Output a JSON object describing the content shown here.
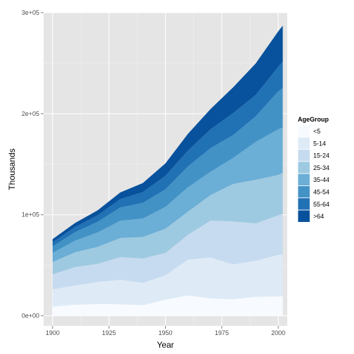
{
  "chart_data": {
    "type": "area",
    "stacked": true,
    "xlabel": "Year",
    "ylabel": "Thousands",
    "xlim": [
      1896,
      2004
    ],
    "ylim": [
      -10000,
      300000
    ],
    "x_ticks": [
      1900,
      1925,
      1950,
      1975,
      2000
    ],
    "y_ticks": [
      0,
      100000,
      200000,
      300000
    ],
    "y_tick_labels": [
      "0e+00",
      "1e+05",
      "2e+05",
      "3e+05"
    ],
    "grid": true,
    "legend": {
      "title": "AgeGroup",
      "position": "right"
    },
    "x": [
      1900,
      1910,
      1920,
      1930,
      1940,
      1950,
      1960,
      1970,
      1980,
      1990,
      2000,
      2002
    ],
    "series": [
      {
        "name": "<5",
        "color": "#f7fbff",
        "values": [
          9200,
          11000,
          11600,
          11500,
          10500,
          16000,
          20200,
          17200,
          16300,
          18800,
          19200,
          19400
        ]
      },
      {
        "name": "5-14",
        "color": "#deebf7",
        "values": [
          17000,
          19000,
          21800,
          24200,
          22000,
          24100,
          35500,
          40500,
          34600,
          35600,
          41100,
          41200
        ]
      },
      {
        "name": "15-24",
        "color": "#c6dbef",
        "values": [
          14900,
          18200,
          18000,
          22400,
          24100,
          22100,
          24500,
          36500,
          42500,
          37000,
          39200,
          40300
        ]
      },
      {
        "name": "25-34",
        "color": "#9ecae1",
        "values": [
          12100,
          14700,
          16800,
          18900,
          21400,
          24000,
          22900,
          25300,
          37100,
          43200,
          39900,
          40500
        ]
      },
      {
        "name": "35-44",
        "color": "#6baed6",
        "values": [
          9100,
          11500,
          14300,
          17100,
          18300,
          21500,
          24200,
          23100,
          25700,
          37600,
          45100,
          45000
        ]
      },
      {
        "name": "45-54",
        "color": "#4292c6",
        "values": [
          6400,
          8400,
          10500,
          13000,
          15500,
          17400,
          20600,
          23300,
          22700,
          25200,
          37700,
          39000
        ]
      },
      {
        "name": "55-64",
        "color": "#2171b5",
        "values": [
          4000,
          5100,
          6500,
          8400,
          10600,
          13400,
          15600,
          18600,
          21700,
          21100,
          24300,
          26100
        ]
      },
      {
        "name": ">64",
        "color": "#08519c",
        "values": [
          3100,
          4000,
          4900,
          6600,
          9000,
          12300,
          16600,
          20100,
          25500,
          31200,
          35000,
          35600
        ]
      }
    ]
  }
}
